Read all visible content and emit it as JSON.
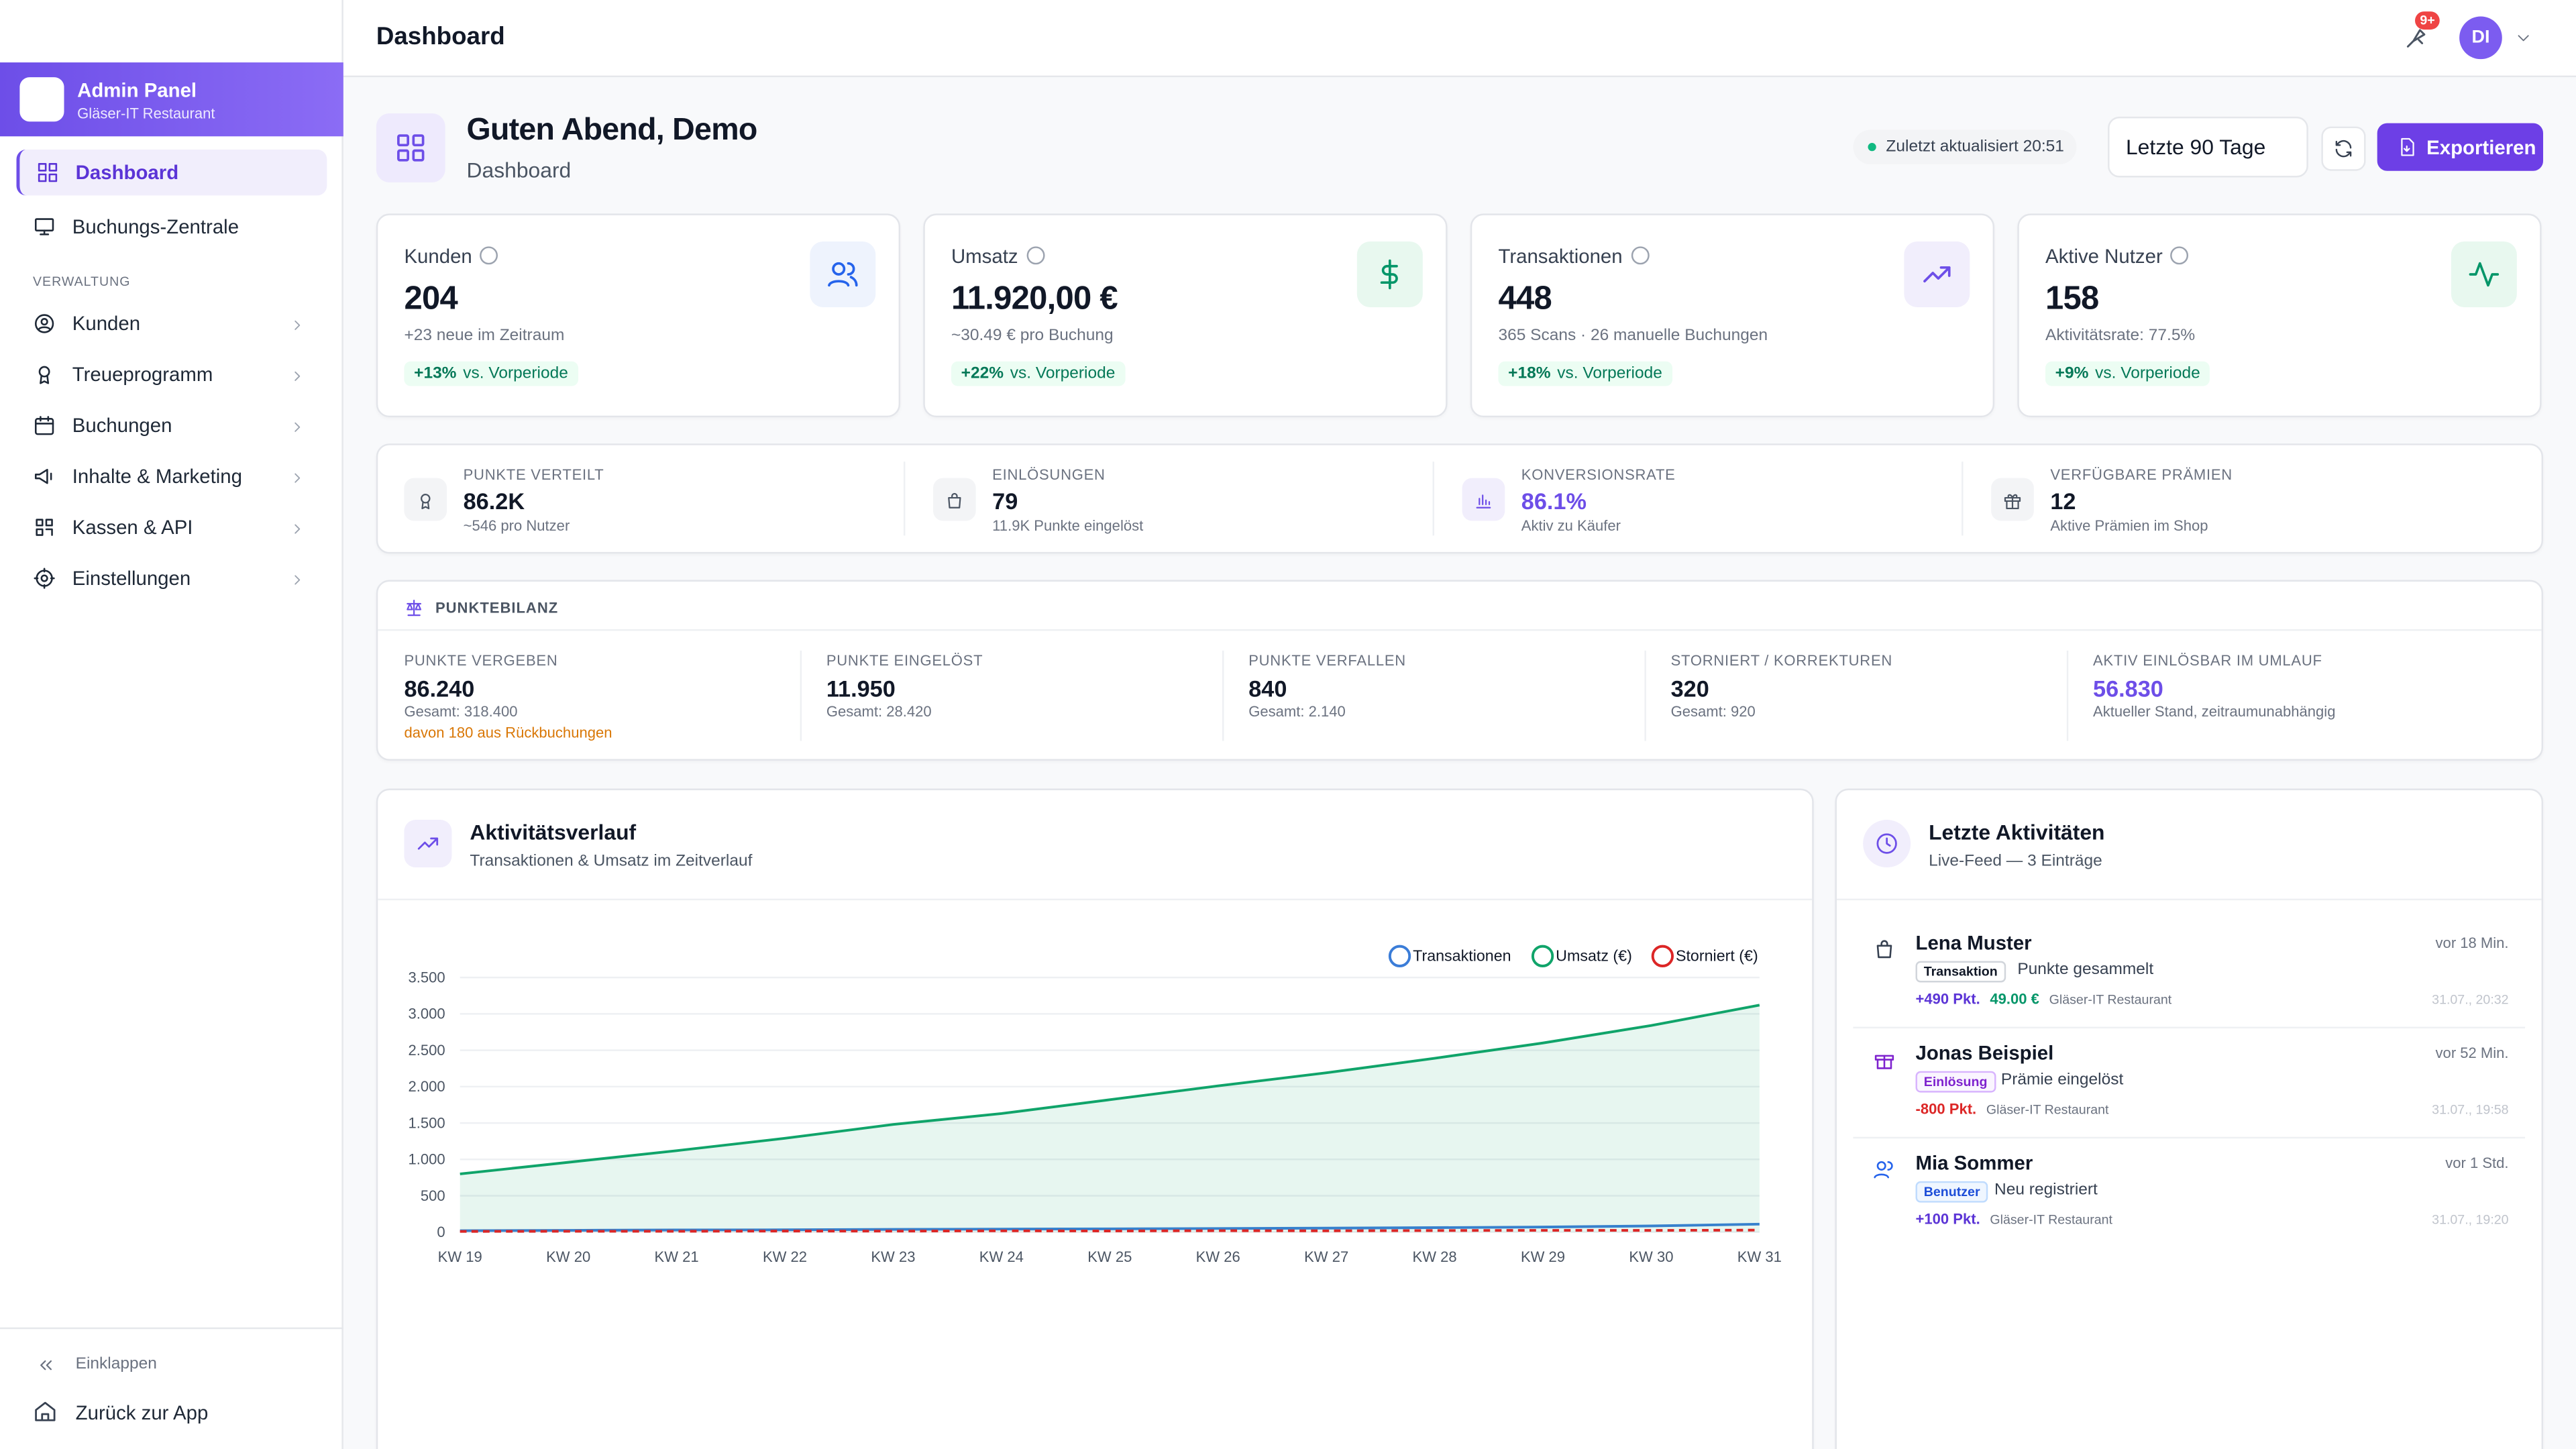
{
  "header": {
    "title": "Dashboard",
    "badge": "9+",
    "avatar": "DI"
  },
  "sidebar": {
    "brand_title": "Admin Panel",
    "brand_subtitle": "Gläser-IT Restaurant",
    "top_nav": [
      "Dashboard",
      "Buchungs-Zentrale"
    ],
    "section": "VERWALTUNG",
    "manage_nav": [
      "Kunden",
      "Treueprogramm",
      "Buchungen",
      "Inhalte & Marketing",
      "Kassen & API",
      "Einstellungen"
    ],
    "collapse": "Einklappen",
    "back": "Zurück zur App"
  },
  "greeting": {
    "title": "Guten Abend, Demo",
    "subtitle": "Dashboard",
    "updated": "Zuletzt aktualisiert 20:51",
    "range": "Letzte 90 Tage",
    "export": "Exportieren"
  },
  "kpis": [
    {
      "label": "Kunden",
      "value": 204,
      "sub": "+23 neue im Zeitraum",
      "delta": "+13%",
      "delta_suffix": "vs. Vorperiode"
    },
    {
      "label": "Umsatz",
      "value": "11.920,00 €",
      "sub": "~30.49 € pro Buchung",
      "delta": "+22%",
      "delta_suffix": "vs. Vorperiode"
    },
    {
      "label": "Transaktionen",
      "value": 448,
      "sub": "365 Scans · 26 manuelle Buchungen",
      "delta": "+18%",
      "delta_suffix": "vs. Vorperiode"
    },
    {
      "label": "Aktive Nutzer",
      "value": 158,
      "sub": "Aktivitätsrate: 77.5%",
      "delta": "+9%",
      "delta_suffix": "vs. Vorperiode"
    }
  ],
  "stats": [
    {
      "label": "PUNKTE VERTEILT",
      "value": "86.2K",
      "sub": "~546 pro Nutzer"
    },
    {
      "label": "EINLÖSUNGEN",
      "value": 79,
      "sub": "11.9K Punkte eingelöst"
    },
    {
      "label": "KONVERSIONSRATE",
      "value": "86.1%",
      "sub": "Aktiv zu Käufer"
    },
    {
      "label": "VERFÜGBARE PRÄMIEN",
      "value": 12,
      "sub": "Aktive Prämien im Shop"
    }
  ],
  "balance": {
    "title": "PUNKTEBILANZ",
    "items": [
      {
        "label": "PUNKTE VERGEBEN",
        "value": "86.240",
        "sub": "Gesamt: 318.400",
        "note": "davon 180 aus Rückbuchungen"
      },
      {
        "label": "PUNKTE EINGELÖST",
        "value": "11.950",
        "sub": "Gesamt: 28.420"
      },
      {
        "label": "PUNKTE VERFALLEN",
        "value": 840,
        "sub": "Gesamt: 2.140"
      },
      {
        "label": "STORNIERT / KORREKTUREN",
        "value": 320,
        "sub": "Gesamt: 920"
      },
      {
        "label": "AKTIV EINLÖSBAR IM UMLAUF",
        "value": "56.830",
        "sub": "Aktueller Stand, zeitraumunabhängig"
      }
    ]
  },
  "chart_data": {
    "type": "line",
    "title": "Aktivitätsverlauf",
    "subtitle": "Transaktionen & Umsatz im Zeitverlauf",
    "categories": [
      "KW 19",
      "KW 20",
      "KW 21",
      "KW 22",
      "KW 23",
      "KW 24",
      "KW 25",
      "KW 26",
      "KW 27",
      "KW 28",
      "KW 29",
      "KW 30",
      "KW 31"
    ],
    "series": [
      {
        "name": "Transaktionen",
        "color": "#3b7dd8",
        "values": [
          20,
          25,
          30,
          32,
          38,
          42,
          45,
          50,
          55,
          62,
          70,
          85,
          110
        ]
      },
      {
        "name": "Umsatz (€)",
        "color": "#10a46a",
        "area": true,
        "values": [
          800,
          960,
          1120,
          1290,
          1480,
          1630,
          1820,
          2010,
          2190,
          2390,
          2600,
          2840,
          3120
        ]
      },
      {
        "name": "Storniert (€)",
        "color": "#dc2626",
        "dashed": true,
        "values": [
          10,
          12,
          12,
          15,
          14,
          18,
          16,
          20,
          18,
          22,
          25,
          24,
          28
        ]
      }
    ],
    "ylim": [
      0,
      3500
    ],
    "yticks": [
      0,
      500,
      {
        "value": 1000,
        "label": "1.000"
      },
      {
        "value": 1500,
        "label": "1.500"
      },
      {
        "value": 2000,
        "label": "2.000"
      },
      {
        "value": 2500,
        "label": "2.500"
      },
      {
        "value": 3000,
        "label": "3.000"
      },
      {
        "value": 3500,
        "label": "3.500"
      }
    ],
    "grid": true,
    "legend": "top-right"
  },
  "activities": {
    "title": "Letzte Aktivitäten",
    "subtitle": "Live-Feed — 3 Einträge",
    "items": [
      {
        "name": "Lena Muster",
        "time": "vor 18 Min.",
        "tag": "Transaktion",
        "desc": "Punkte gesammelt",
        "points": "+490 Pkt.",
        "amount": "49.00 €",
        "place": "Gläser-IT Restaurant",
        "date": "31.07., 20:32"
      },
      {
        "name": "Jonas Beispiel",
        "time": "vor 52 Min.",
        "tag": "Einlösung",
        "desc": "Prämie eingelöst",
        "points": "-800 Pkt.",
        "place": "Gläser-IT Restaurant",
        "date": "31.07., 19:58"
      },
      {
        "name": "Mia Sommer",
        "time": "vor 1 Std.",
        "tag": "Benutzer",
        "desc": "Neu registriert",
        "points": "+100 Pkt.",
        "place": "Gläser-IT Restaurant",
        "date": "31.07., 19:20"
      }
    ]
  }
}
